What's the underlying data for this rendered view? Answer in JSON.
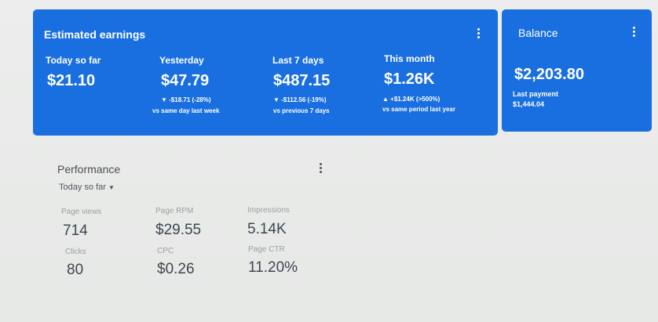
{
  "earnings": {
    "title": "Estimated earnings",
    "metrics": [
      {
        "label": "Today so far",
        "value": "$21.10"
      },
      {
        "label": "Yesterday",
        "value": "$47.79",
        "change": "▼ -$18.71 (-28%)",
        "comparison": "vs same day last week"
      },
      {
        "label": "Last 7 days",
        "value": "$487.15",
        "change": "▼ -$112.56 (-19%)",
        "comparison": "vs previous 7 days"
      },
      {
        "label": "This month",
        "value": "$1.26K",
        "change": "▲ +$1.24K (>500%)",
        "comparison": "vs same period last year"
      }
    ]
  },
  "balance": {
    "title": "Balance",
    "value": "$2,203.80",
    "last_payment_label": "Last payment",
    "last_payment": "$1,444.04"
  },
  "performance": {
    "title": "Performance",
    "period": "Today so far",
    "metrics": [
      {
        "label": "Page views",
        "value": "714"
      },
      {
        "label": "Page RPM",
        "value": "$29.55"
      },
      {
        "label": "Impressions",
        "value": "5.14K"
      },
      {
        "label": "Clicks",
        "value": "80"
      },
      {
        "label": "CPC",
        "value": "$0.26"
      },
      {
        "label": "Page CTR",
        "value": "11.20%"
      }
    ]
  }
}
